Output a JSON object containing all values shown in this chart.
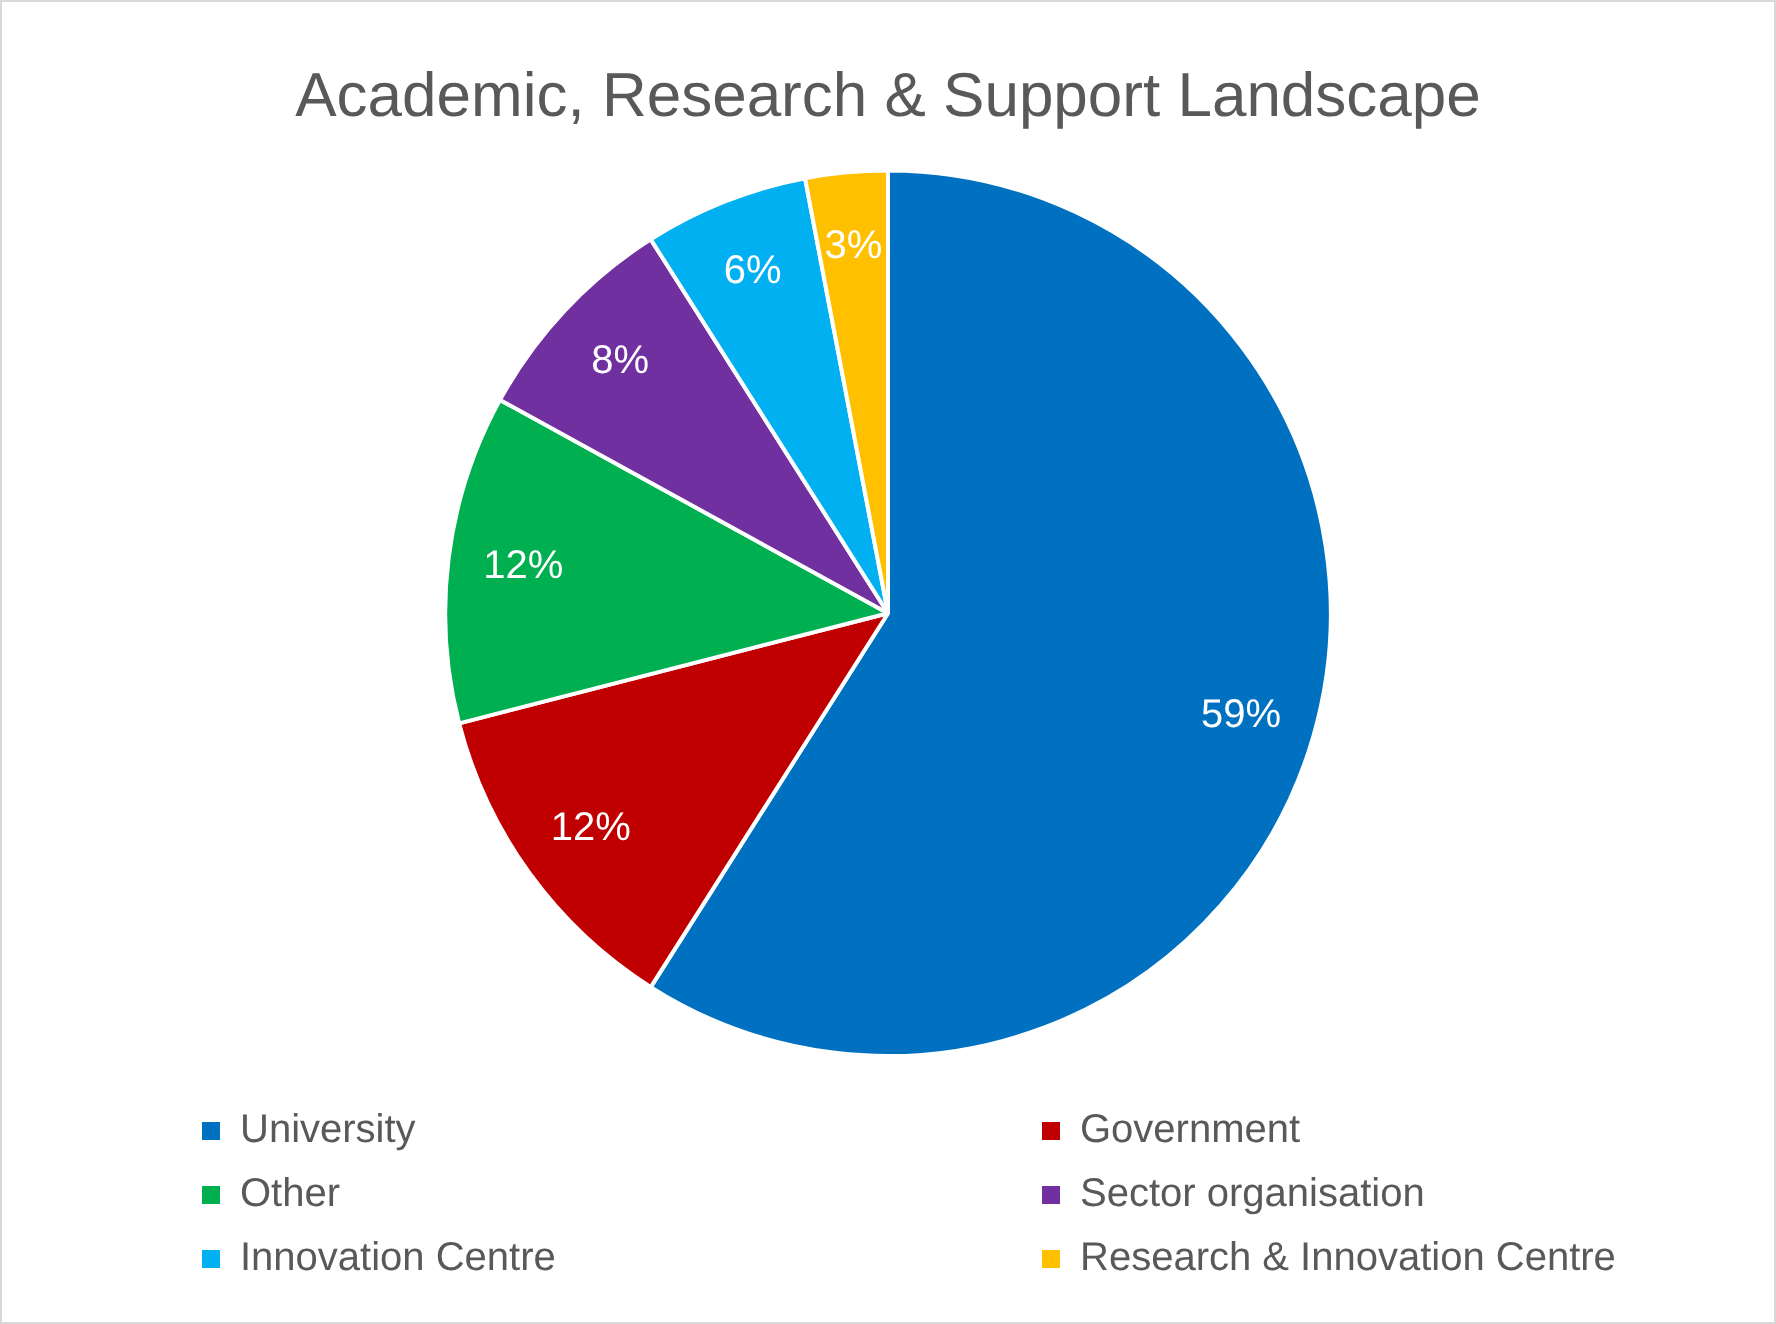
{
  "chart_data": {
    "type": "pie",
    "title": "Academic, Research & Support Landscape",
    "categories": [
      "University",
      "Government",
      "Other",
      "Sector organisation",
      "Innovation Centre",
      "Research & Innovation Centre"
    ],
    "values": [
      59,
      12,
      12,
      8,
      6,
      3
    ],
    "colors": [
      "#0070c0",
      "#c00000",
      "#00b050",
      "#7030a0",
      "#00b0f0",
      "#ffc000"
    ],
    "value_labels": [
      "59%",
      "12%",
      "12%",
      "8%",
      "6%",
      "3%"
    ],
    "legend": "bottom"
  }
}
